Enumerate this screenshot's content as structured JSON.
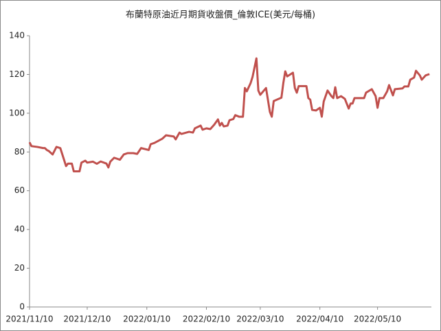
{
  "chart_data": {
    "type": "line",
    "title": "布蘭特原油近月期貨收盤價_倫敦ICE(美元/每桶)",
    "x": [
      "2021/11/10",
      "2021/11/11",
      "2021/11/14",
      "2021/11/17",
      "2021/11/18",
      "2021/11/19",
      "2021/11/20",
      "2021/11/22",
      "2021/11/24",
      "2021/11/26",
      "2021/11/29",
      "2021/11/30",
      "2021/12/02",
      "2021/12/03",
      "2021/12/06",
      "2021/12/07",
      "2021/12/09",
      "2021/12/10",
      "2021/12/13",
      "2021/12/15",
      "2021/12/17",
      "2021/12/20",
      "2021/12/21",
      "2021/12/22",
      "2021/12/24",
      "2021/12/27",
      "2021/12/29",
      "2021/12/31",
      "2022/01/03",
      "2022/01/05",
      "2022/01/07",
      "2022/01/11",
      "2022/01/12",
      "2022/01/14",
      "2022/01/18",
      "2022/01/20",
      "2022/01/24",
      "2022/01/25",
      "2022/01/27",
      "2022/01/28",
      "2022/02/01",
      "2022/02/03",
      "2022/02/04",
      "2022/02/07",
      "2022/02/08",
      "2022/02/10",
      "2022/02/12",
      "2022/02/14",
      "2022/02/16",
      "2022/02/17",
      "2022/02/18",
      "2022/02/19",
      "2022/02/21",
      "2022/02/22",
      "2022/02/24",
      "2022/02/25",
      "2022/02/27",
      "2022/03/01",
      "2022/03/02",
      "2022/03/03",
      "2022/03/05",
      "2022/03/06",
      "2022/03/08",
      "2022/03/09",
      "2022/03/10",
      "2022/03/13",
      "2022/03/15",
      "2022/03/16",
      "2022/03/17",
      "2022/03/21",
      "2022/03/22",
      "2022/03/23",
      "2022/03/24",
      "2022/03/27",
      "2022/03/28",
      "2022/03/29",
      "2022/03/30",
      "2022/04/03",
      "2022/04/04",
      "2022/04/05",
      "2022/04/06",
      "2022/04/08",
      "2022/04/10",
      "2022/04/11",
      "2022/04/12",
      "2022/04/14",
      "2022/04/16",
      "2022/04/17",
      "2022/04/18",
      "2022/04/19",
      "2022/04/21",
      "2022/04/23",
      "2022/04/25",
      "2022/04/26",
      "2022/04/27",
      "2022/04/28",
      "2022/05/03",
      "2022/05/04",
      "2022/05/07",
      "2022/05/09",
      "2022/05/10",
      "2022/05/11",
      "2022/05/13",
      "2022/05/15",
      "2022/05/16",
      "2022/05/18",
      "2022/05/19",
      "2022/05/23",
      "2022/05/24",
      "2022/05/26",
      "2022/05/27",
      "2022/05/29",
      "2022/05/30",
      "2022/06/01",
      "2022/06/02",
      "2022/06/04",
      "2022/06/06"
    ],
    "series": [
      {
        "color": "#c0504d",
        "values": [
          85,
          83,
          82.6,
          82,
          82,
          81,
          80.5,
          78.7,
          82.6,
          82,
          72.7,
          74,
          74,
          70,
          70,
          74.5,
          75.5,
          74.5,
          75,
          73.9,
          75.1,
          74,
          72,
          75,
          77,
          76,
          78.7,
          79.4,
          79.4,
          79,
          82,
          81,
          84,
          84.7,
          86.8,
          88.6,
          88,
          86.5,
          90,
          89.3,
          90.4,
          90,
          92.2,
          93.6,
          91.5,
          92.2,
          91.8,
          94,
          96.8,
          93.6,
          95,
          93.2,
          93.6,
          96.4,
          97,
          99,
          98.2,
          98.2,
          113,
          111.3,
          115.6,
          118.8,
          128.3,
          111.7,
          109.5,
          113,
          100.7,
          98.2,
          106.3,
          108,
          115.6,
          121.6,
          119,
          120.9,
          113,
          110.6,
          114,
          114,
          107.8,
          107,
          101.7,
          101.4,
          102.8,
          98.2,
          106,
          111.7,
          108.8,
          107.8,
          113.4,
          107.8,
          108.8,
          107.4,
          102.4,
          105,
          105,
          107.8,
          107.8,
          110.6,
          112.4,
          108.8,
          102.8,
          107.8,
          107.8,
          111.3,
          114.5,
          109.2,
          112.4,
          112.8,
          113.8,
          113.8,
          117.3,
          118.4,
          121.9,
          119.5,
          117.3,
          119.5,
          120.2
        ]
      }
    ],
    "xlim": [
      "2021/11/10",
      "2022/06/07"
    ],
    "xticks": [
      "2021/11/10",
      "2021/12/10",
      "2022/01/10",
      "2022/02/10",
      "2022/03/10",
      "2022/04/10",
      "2022/05/10"
    ],
    "ylim": [
      0,
      140
    ],
    "yticks": [
      0,
      20,
      40,
      60,
      80,
      100,
      120,
      140
    ]
  }
}
